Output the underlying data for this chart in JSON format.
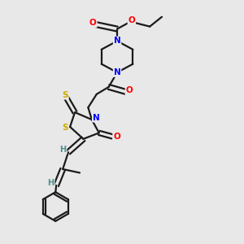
{
  "bg_color": "#e8e8e8",
  "atom_colors": {
    "N": "#0000ff",
    "O": "#ff0000",
    "S": "#ccaa00",
    "C": "#1a1a1a",
    "H": "#4a9090"
  },
  "bond_color": "#1a1a1a",
  "bond_width": 1.6,
  "figsize": [
    3.0,
    3.0
  ],
  "dpi": 100
}
